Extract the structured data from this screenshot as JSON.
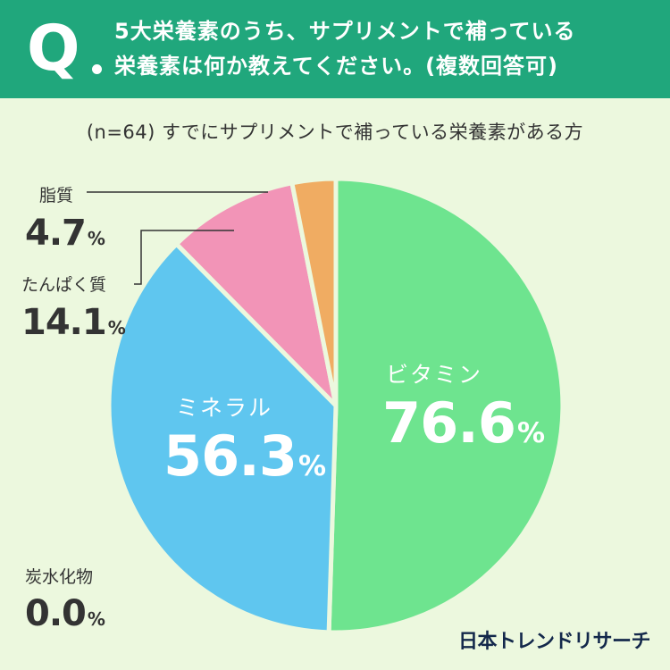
{
  "header": {
    "q_letter": "Q",
    "question_line1": "5大栄養素のうち、サプリメントで補っている",
    "question_line2": "栄養素は何か教えてください。(複数回答可)"
  },
  "chart_data": {
    "type": "pie",
    "title": "(n=64) すでにサプリメントで補っている栄養素がある方",
    "unit": "%",
    "slices": [
      {
        "label": "ビタミン",
        "value": 76.6,
        "color": "#6ee48f"
      },
      {
        "label": "ミネラル",
        "value": 56.3,
        "color": "#5fc6ef"
      },
      {
        "label": "炭水化物",
        "value": 0.0,
        "color": "#fb7a4a"
      },
      {
        "label": "たんぱく質",
        "value": 14.1,
        "color": "#f294b7"
      },
      {
        "label": "脂質",
        "value": 4.7,
        "color": "#f0ac62"
      }
    ],
    "display_values": {
      "vitamin": "76.6",
      "mineral": "56.3",
      "carbohydrate": "0.0",
      "protein": "14.1",
      "fat": "4.7"
    },
    "pct_sign": "%",
    "slice_separator_color": "#ecf8de",
    "leader_line_color": "#333333"
  },
  "credit": "日本トレンドリサーチ"
}
